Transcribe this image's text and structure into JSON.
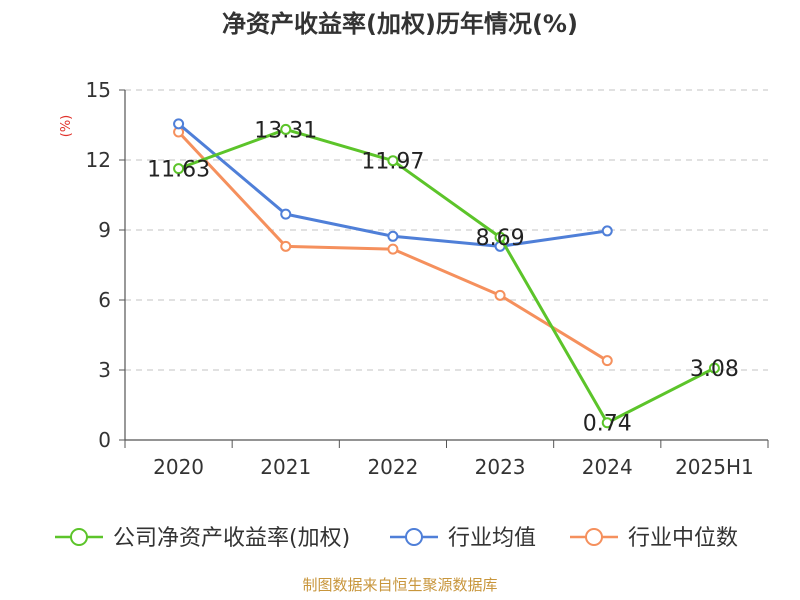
{
  "chart_data": {
    "type": "line",
    "title": "净资产收益率(加权)历年情况(%)",
    "ylabel": "(%)",
    "categories": [
      "2020",
      "2021",
      "2022",
      "2023",
      "2024",
      "2025H1"
    ],
    "yticks": [
      "0",
      "3",
      "6",
      "9",
      "12",
      "15"
    ],
    "ylim": [
      0,
      15
    ],
    "grid": true,
    "legend_position": "bottom",
    "series": [
      {
        "name": "公司净资产收益率(加权)",
        "color": "#5cc42a",
        "values": [
          11.63,
          13.31,
          11.97,
          8.69,
          0.74,
          3.08
        ],
        "labels": [
          "11.63",
          "13.31",
          "11.97",
          "8.69",
          "0.74",
          "3.08"
        ]
      },
      {
        "name": "行业均值",
        "color": "#4f7fd8",
        "values": [
          13.55,
          9.68,
          8.73,
          8.3,
          8.96,
          null
        ]
      },
      {
        "name": "行业中位数",
        "color": "#f5905d",
        "values": [
          13.2,
          8.3,
          8.18,
          6.2,
          3.4,
          null
        ]
      }
    ],
    "source": "制图数据来自恒生聚源数据库"
  }
}
